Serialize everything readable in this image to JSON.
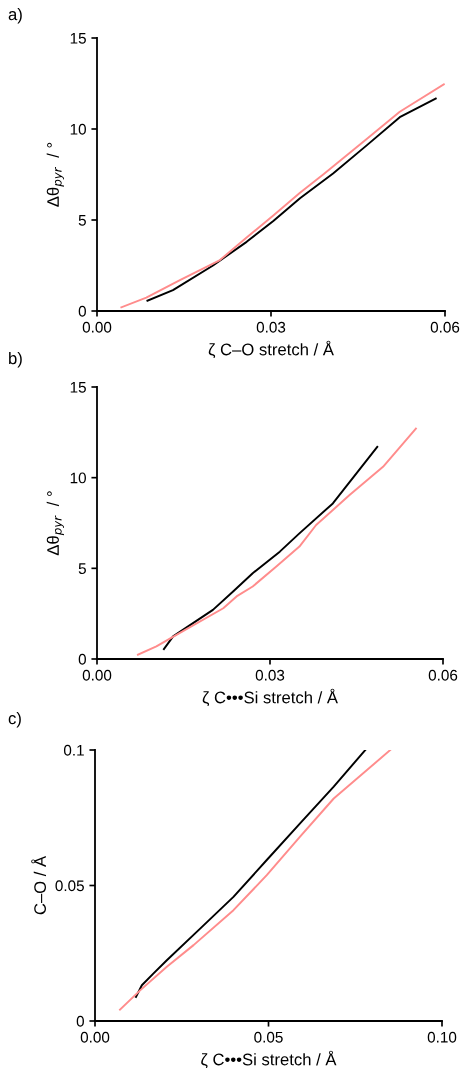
{
  "chart_data": [
    {
      "type": "line",
      "title": "a)",
      "xlabel": "ζ C–O stretch / Å",
      "ylabel": "Δθ$_{pyr}$  / °",
      "xlim": [
        0,
        0.06
      ],
      "xticks": [
        {
          "value": 0,
          "label": "0.00"
        },
        {
          "value": 0.03,
          "label": "0.03"
        },
        {
          "value": 0.06,
          "label": "0.06"
        }
      ],
      "ylim": [
        0,
        15
      ],
      "yticks": [
        0,
        5,
        10,
        15
      ],
      "grid": false,
      "series": [
        {
          "color": "#000000",
          "x": [
            0.0087,
            0.0131,
            0.02,
            0.0258,
            0.0304,
            0.035,
            0.0407,
            0.0465,
            0.0522,
            0.0584
          ],
          "values": [
            0.57,
            1.15,
            2.5,
            3.8,
            4.95,
            6.2,
            7.55,
            9.1,
            10.65,
            11.67
          ]
        },
        {
          "color": "#ff8c8c",
          "x": [
            0.0042,
            0.0085,
            0.0143,
            0.0212,
            0.0258,
            0.0304,
            0.035,
            0.039,
            0.0465,
            0.0522,
            0.0598
          ],
          "values": [
            0.2,
            0.73,
            1.7,
            2.8,
            4.04,
            5.25,
            6.5,
            7.5,
            9.45,
            10.95,
            12.45
          ]
        }
      ]
    },
    {
      "type": "line",
      "title": "b)",
      "xlabel": "ζ C•••Si stretch / Å",
      "ylabel": "Δθ$_{pyr}$  / °",
      "xlim": [
        0,
        0.06
      ],
      "xticks": [
        {
          "value": 0,
          "label": "0.00"
        },
        {
          "value": 0.03,
          "label": "0.03"
        },
        {
          "value": 0.06,
          "label": "0.06"
        }
      ],
      "ylim": [
        0,
        15
      ],
      "yticks": [
        0,
        5,
        10,
        15
      ],
      "grid": false,
      "series": [
        {
          "color": "#000000",
          "x": [
            0.0116,
            0.0132,
            0.0201,
            0.0236,
            0.027,
            0.0317,
            0.0351,
            0.0409,
            0.0486
          ],
          "values": [
            0.55,
            1.25,
            2.71,
            3.72,
            4.73,
            5.92,
            6.93,
            8.58,
            11.7
          ]
        },
        {
          "color": "#ff8c8c",
          "x": [
            0.0071,
            0.0103,
            0.0143,
            0.0219,
            0.0242,
            0.027,
            0.0311,
            0.0351,
            0.038,
            0.0438,
            0.0496,
            0.0553
          ],
          "values": [
            0.24,
            0.7,
            1.43,
            2.8,
            3.45,
            4.0,
            5.1,
            6.2,
            7.39,
            9.04,
            10.6,
            12.7
          ]
        }
      ]
    },
    {
      "type": "line",
      "title": "c)",
      "xlabel": "ζ C•••Si stretch / Å",
      "ylabel": "C–O / Å",
      "xlim": [
        0,
        0.1
      ],
      "xticks": [
        {
          "value": 0,
          "label": "0.00"
        },
        {
          "value": 0.05,
          "label": "0.05"
        },
        {
          "value": 0.1,
          "label": "0.10"
        }
      ],
      "ylim": [
        0,
        0.1
      ],
      "yticks": [
        0,
        {
          "value": 0.05,
          "label": "0.05"
        },
        {
          "value": 0.1,
          "label": "0.1"
        }
      ],
      "grid": false,
      "series": [
        {
          "color": "#000000",
          "x": [
            0.0118,
            0.0135,
            0.0168,
            0.0207,
            0.0303,
            0.0399,
            0.0495,
            0.0591,
            0.0688,
            0.0779
          ],
          "values": [
            0.0089,
            0.0132,
            0.0175,
            0.0224,
            0.0341,
            0.0458,
            0.0594,
            0.0729,
            0.0865,
            0.1
          ]
        },
        {
          "color": "#ff8c8c",
          "x": [
            0.0072,
            0.013,
            0.0207,
            0.0284,
            0.0399,
            0.0495,
            0.0591,
            0.0688,
            0.0851
          ],
          "values": [
            0.0042,
            0.0113,
            0.02,
            0.028,
            0.0409,
            0.0538,
            0.068,
            0.0821,
            0.1
          ]
        }
      ]
    }
  ]
}
